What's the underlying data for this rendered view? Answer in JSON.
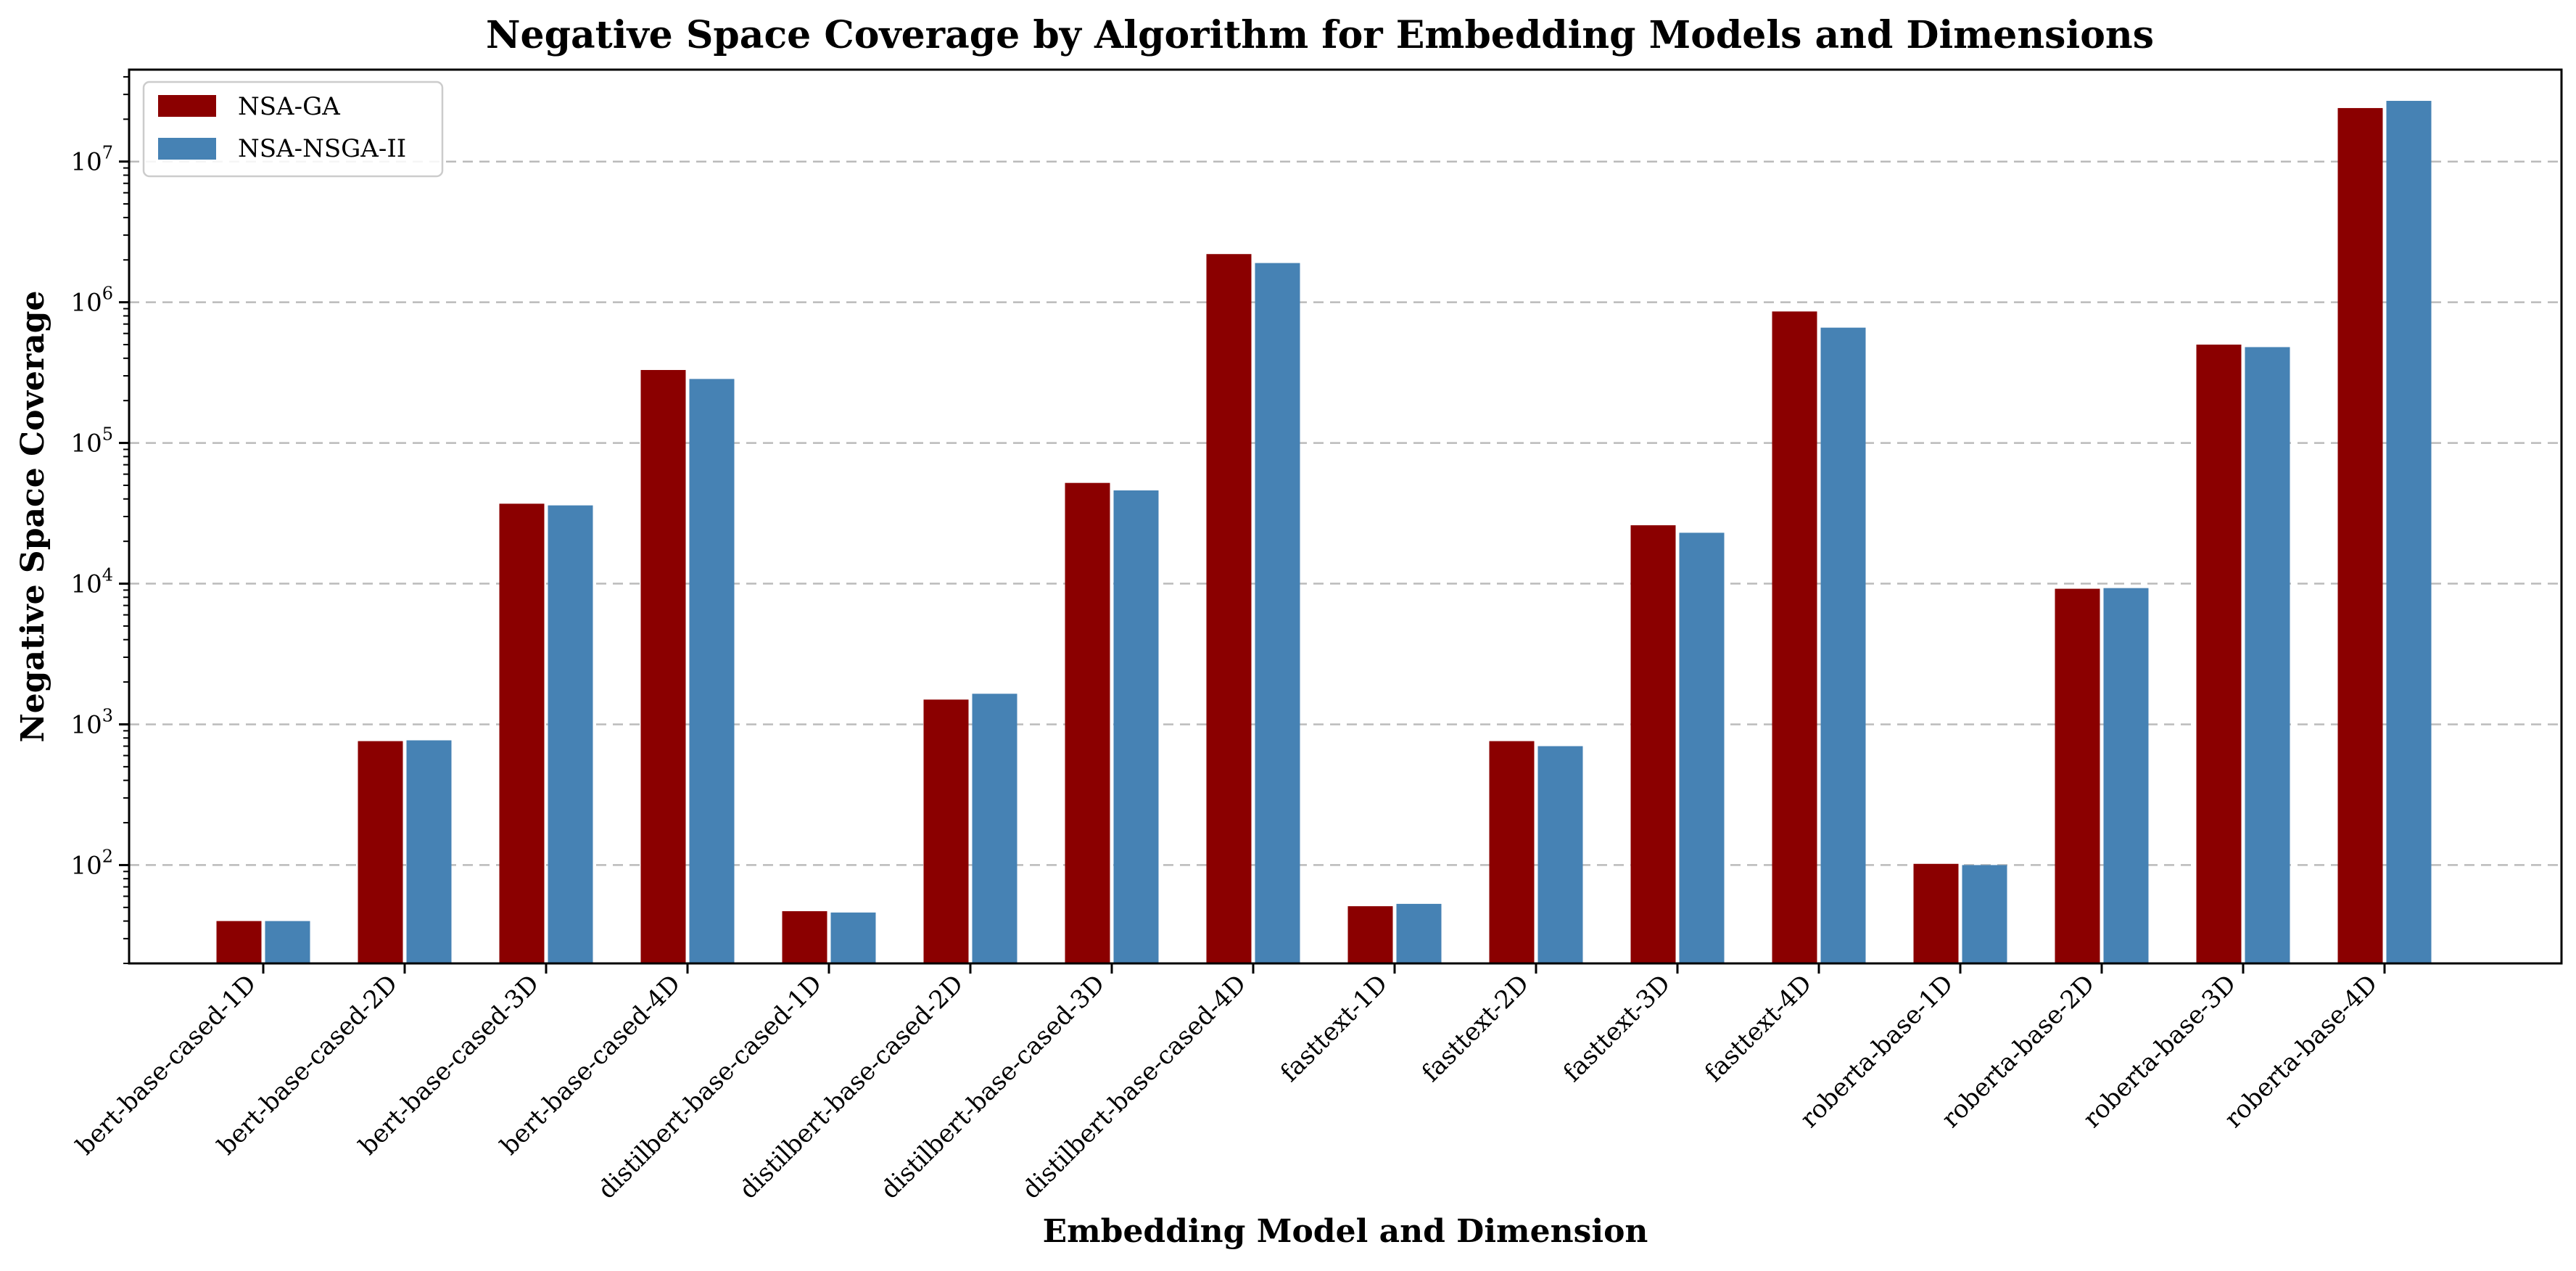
{
  "chart_data": {
    "type": "bar",
    "title": "Negative Space Coverage by Algorithm for Embedding Models and Dimensions",
    "xlabel": "Embedding Model and Dimension",
    "ylabel": "Negative Space Coverage",
    "yscale": "log",
    "ylim": [
      20,
      45000000
    ],
    "grid": "horizontal dashed",
    "legend_position": "top-left",
    "categories": [
      "bert-base-cased-1D",
      "bert-base-cased-2D",
      "bert-base-cased-3D",
      "bert-base-cased-4D",
      "distilbert-base-cased-1D",
      "distilbert-base-cased-2D",
      "distilbert-base-cased-3D",
      "distilbert-base-cased-4D",
      "fasttext-1D",
      "fasttext-2D",
      "fasttext-3D",
      "fasttext-4D",
      "roberta-base-1D",
      "roberta-base-2D",
      "roberta-base-3D",
      "roberta-base-4D"
    ],
    "series": [
      {
        "name": "NSA-GA",
        "color": "#8b0000",
        "values": [
          40,
          760,
          37000,
          330000,
          47,
          1500,
          52000,
          2200000,
          51,
          760,
          26000,
          860000,
          102,
          9200,
          500000,
          24000000
        ]
      },
      {
        "name": "NSA-NSGA-II",
        "color": "#4682b4",
        "values": [
          40,
          770,
          36000,
          285000,
          46,
          1650,
          46000,
          1900000,
          53,
          700,
          23000,
          660000,
          100,
          9300,
          480000,
          27000000
        ]
      }
    ],
    "ytick_labels": [
      {
        "mantissa": "10",
        "exponent": "2",
        "value": 100
      },
      {
        "mantissa": "10",
        "exponent": "3",
        "value": 1000
      },
      {
        "mantissa": "10",
        "exponent": "4",
        "value": 10000
      },
      {
        "mantissa": "10",
        "exponent": "5",
        "value": 100000
      },
      {
        "mantissa": "10",
        "exponent": "6",
        "value": 1000000
      },
      {
        "mantissa": "10",
        "exponent": "7",
        "value": 10000000
      }
    ]
  }
}
